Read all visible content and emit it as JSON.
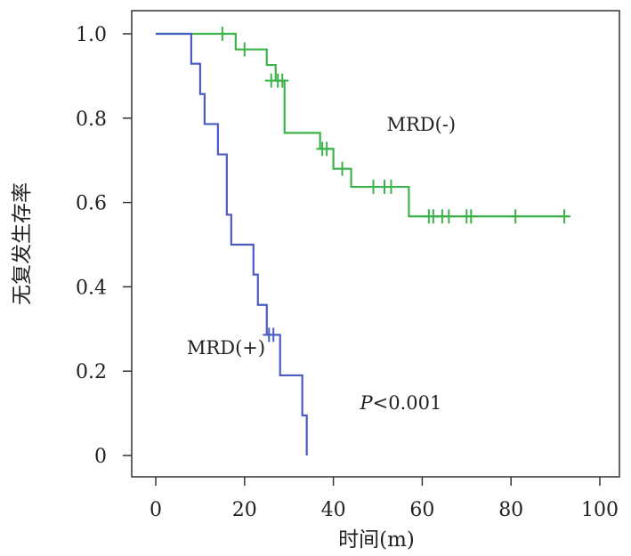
{
  "chart_data": {
    "type": "line",
    "title": "",
    "xlabel": "时间(m)",
    "ylabel": "无复发生存率",
    "xlim": [
      0,
      100
    ],
    "ylim": [
      0,
      1.0
    ],
    "x_ticks": [
      0,
      20,
      40,
      60,
      80,
      100
    ],
    "x_tick_labels": [
      "0",
      "20",
      "40",
      "60",
      "80",
      "100"
    ],
    "y_ticks": [
      0,
      0.2,
      0.4,
      0.6,
      0.8,
      1.0
    ],
    "y_tick_labels": [
      "0",
      "0.2",
      "0.4",
      "0.6",
      "0.8",
      "1.0"
    ],
    "grid": false,
    "series": [
      {
        "name": "MRD(-)",
        "color": "#3cb34a",
        "steps": [
          [
            0,
            1.0
          ],
          [
            18,
            0.963
          ],
          [
            25,
            0.926
          ],
          [
            27,
            0.889
          ],
          [
            29,
            0.765
          ],
          [
            37,
            0.727
          ],
          [
            40,
            0.68
          ],
          [
            44,
            0.637
          ],
          [
            57,
            0.567
          ],
          [
            93,
            0.567
          ]
        ],
        "censored": [
          [
            15,
            1.0
          ],
          [
            20,
            0.963
          ],
          [
            26,
            0.889
          ],
          [
            27.5,
            0.889
          ],
          [
            28.5,
            0.889
          ],
          [
            37.5,
            0.727
          ],
          [
            38.5,
            0.727
          ],
          [
            42,
            0.68
          ],
          [
            49,
            0.637
          ],
          [
            51.5,
            0.637
          ],
          [
            53,
            0.637
          ],
          [
            61.5,
            0.567
          ],
          [
            62.5,
            0.567
          ],
          [
            64.5,
            0.567
          ],
          [
            66,
            0.567
          ],
          [
            70,
            0.567
          ],
          [
            71,
            0.567
          ],
          [
            81,
            0.567
          ],
          [
            92,
            0.567
          ]
        ]
      },
      {
        "name": "MRD(+)",
        "color": "#4a5cc4",
        "steps": [
          [
            0,
            1.0
          ],
          [
            8,
            0.929
          ],
          [
            10,
            0.857
          ],
          [
            11,
            0.786
          ],
          [
            14,
            0.714
          ],
          [
            16,
            0.571
          ],
          [
            17,
            0.5
          ],
          [
            22,
            0.429
          ],
          [
            23,
            0.357
          ],
          [
            25,
            0.286
          ],
          [
            28,
            0.19
          ],
          [
            33,
            0.095
          ],
          [
            34,
            0
          ],
          [
            34,
            0
          ]
        ],
        "censored": [
          [
            25.5,
            0.286
          ],
          [
            26.5,
            0.286
          ]
        ]
      }
    ],
    "annotations": [
      {
        "text": "MRD(-)",
        "x": 52,
        "y": 0.77
      },
      {
        "text": "MRD(+)",
        "x": 7,
        "y": 0.24
      },
      {
        "text": "P<0.001",
        "x": 46,
        "y": 0.11
      }
    ]
  }
}
